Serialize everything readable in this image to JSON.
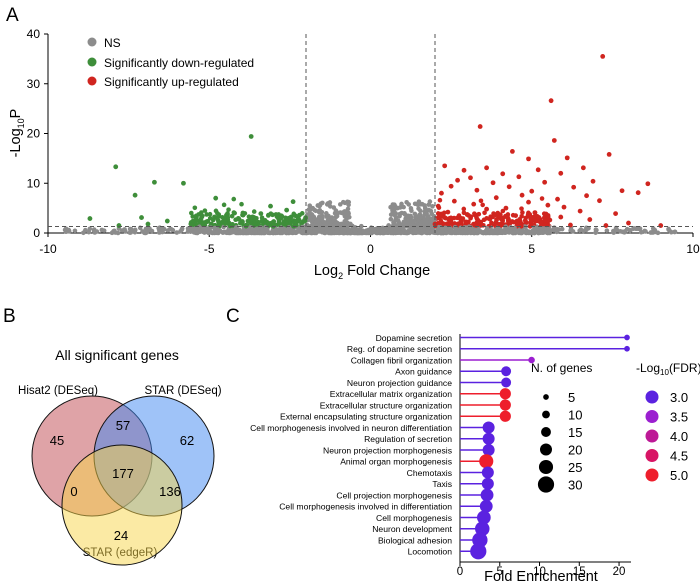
{
  "panels": {
    "a": "A",
    "b": "B",
    "c": "C"
  },
  "chart_data": [
    {
      "type": "scatter",
      "title": "",
      "xlabel": "Log2 Fold Change",
      "xlabel_base": "Log",
      "xlabel_sub": "2",
      "xlabel_rest": " Fold Change",
      "ylabel_base": "-Log",
      "ylabel_sub": "10",
      "ylabel_rest": "P",
      "xlim": [
        -10,
        10
      ],
      "ylim": [
        0,
        40
      ],
      "xticks": [
        -10,
        -5,
        0,
        5,
        10
      ],
      "yticks": [
        0,
        10,
        20,
        30,
        40
      ],
      "thresholds": {
        "x": [
          -2,
          2
        ],
        "y": 1.3
      },
      "legend": [
        {
          "label": "NS",
          "color": "#8c8c8c"
        },
        {
          "label": "Significantly down-regulated",
          "color": "#3e8e3a"
        },
        {
          "label": "Significantly up-regulated",
          "color": "#d0251f"
        }
      ],
      "colors": {
        "ns": "#8c8c8c",
        "down": "#3e8e3a",
        "up": "#d0251f"
      },
      "series": [
        {
          "name": "Significantly up-regulated",
          "points": [
            [
              7.2,
              35.5
            ],
            [
              5.6,
              26.6
            ],
            [
              3.4,
              21.4
            ],
            [
              5.7,
              18.6
            ],
            [
              4.4,
              16.4
            ],
            [
              6.1,
              15.1
            ],
            [
              7.4,
              15.8
            ],
            [
              4.9,
              14.9
            ],
            [
              2.3,
              13.5
            ],
            [
              3.6,
              13.1
            ],
            [
              5.2,
              12.7
            ],
            [
              6.6,
              13.1
            ],
            [
              2.9,
              12.6
            ],
            [
              4.1,
              11.9
            ],
            [
              5.9,
              12.0
            ],
            [
              3.1,
              11.1
            ],
            [
              4.6,
              11.3
            ],
            [
              6.9,
              10.4
            ],
            [
              2.7,
              10.6
            ],
            [
              3.8,
              10.1
            ],
            [
              5.4,
              10.2
            ],
            [
              8.6,
              9.9
            ],
            [
              2.5,
              9.4
            ],
            [
              4.3,
              9.3
            ],
            [
              6.3,
              9.2
            ],
            [
              7.8,
              8.5
            ],
            [
              8.3,
              8.1
            ],
            [
              3.3,
              8.6
            ],
            [
              5.0,
              8.4
            ],
            [
              2.2,
              8.0
            ],
            [
              4.7,
              7.6
            ],
            [
              6.7,
              7.5
            ],
            [
              3.9,
              7.1
            ],
            [
              5.8,
              6.8
            ],
            [
              2.6,
              6.4
            ],
            [
              4.9,
              6.2
            ],
            [
              7.1,
              6.5
            ],
            [
              3.2,
              5.8
            ],
            [
              5.5,
              5.6
            ],
            [
              6.0,
              5.2
            ],
            [
              2.1,
              5.4
            ],
            [
              4.2,
              5.0
            ],
            [
              3.6,
              4.8
            ],
            [
              6.5,
              4.4
            ],
            [
              2.4,
              4.2
            ],
            [
              5.1,
              4.1
            ],
            [
              7.6,
              3.9
            ],
            [
              3.0,
              3.7
            ],
            [
              4.5,
              3.5
            ],
            [
              5.9,
              3.2
            ],
            [
              2.3,
              3.1
            ],
            [
              3.7,
              2.8
            ],
            [
              6.8,
              2.7
            ],
            [
              4.8,
              2.5
            ],
            [
              2.8,
              2.3
            ],
            [
              5.3,
              2.1
            ],
            [
              8.0,
              2.0
            ],
            [
              3.4,
              1.9
            ],
            [
              2.0,
              1.8
            ],
            [
              4.0,
              1.7
            ],
            [
              6.2,
              1.6
            ],
            [
              7.3,
              1.5
            ],
            [
              9.0,
              1.5
            ],
            [
              2.5,
              2.0
            ]
          ]
        },
        {
          "name": "Significantly down-regulated",
          "points": [
            [
              -3.7,
              19.4
            ],
            [
              -7.9,
              13.3
            ],
            [
              -6.7,
              10.2
            ],
            [
              -5.8,
              10.0
            ],
            [
              -7.3,
              7.6
            ],
            [
              -4.8,
              7.0
            ],
            [
              -3.1,
              5.4
            ],
            [
              -2.4,
              6.3
            ],
            [
              -8.7,
              2.9
            ],
            [
              -7.1,
              3.1
            ],
            [
              -6.3,
              2.4
            ],
            [
              -2.6,
              4.6
            ],
            [
              -3.4,
              3.9
            ],
            [
              -2.9,
              3.3
            ],
            [
              -4.1,
              2.8
            ],
            [
              -2.2,
              3.6
            ],
            [
              -5.1,
              2.2
            ],
            [
              -3.8,
              2.4
            ],
            [
              -2.5,
              2.7
            ],
            [
              -4.5,
              1.9
            ],
            [
              -3.2,
              2.0
            ],
            [
              -6.9,
              1.8
            ],
            [
              -5.5,
              1.7
            ],
            [
              -2.7,
              1.9
            ],
            [
              -3.6,
              1.7
            ],
            [
              -2.1,
              2.2
            ],
            [
              -4.3,
              1.6
            ],
            [
              -7.8,
              1.5
            ],
            [
              -3.0,
              2.3
            ],
            [
              -2.3,
              1.6
            ]
          ]
        }
      ]
    },
    {
      "type": "venn",
      "title": "All significant genes",
      "sets": [
        {
          "name": "Hisat2 (DESeq)",
          "color": "#c0474f"
        },
        {
          "name": "STAR (DESeq)",
          "color": "#3f87f2"
        },
        {
          "name": "STAR (edgeR)",
          "color": "#f8d54a"
        }
      ],
      "regions": [
        {
          "sets": [
            "Hisat2 (DESeq)"
          ],
          "value": 45
        },
        {
          "sets": [
            "STAR (DESeq)"
          ],
          "value": 62
        },
        {
          "sets": [
            "STAR (edgeR)"
          ],
          "value": 24
        },
        {
          "sets": [
            "Hisat2 (DESeq)",
            "STAR (DESeq)"
          ],
          "value": 57
        },
        {
          "sets": [
            "Hisat2 (DESeq)",
            "STAR (edgeR)"
          ],
          "value": 0
        },
        {
          "sets": [
            "STAR (DESeq)",
            "STAR (edgeR)"
          ],
          "value": 136
        },
        {
          "sets": [
            "Hisat2 (DESeq)",
            "STAR (DESeq)",
            "STAR (edgeR)"
          ],
          "value": 177
        }
      ]
    },
    {
      "type": "lollipop",
      "title": "",
      "xlabel": "Fold Enrichement",
      "xlim": [
        0,
        21
      ],
      "xticks": [
        0,
        5,
        10,
        15,
        20
      ],
      "terms": [
        {
          "term": "Dopamine secretion",
          "fold": 21.0,
          "genes": 5,
          "fdr": 3.0
        },
        {
          "term": "Reg. of dopamine secretion",
          "fold": 21.0,
          "genes": 5,
          "fdr": 3.0
        },
        {
          "term": "Collagen fibril organization",
          "fold": 9.0,
          "genes": 7,
          "fdr": 3.3
        },
        {
          "term": "Axon guidance",
          "fold": 5.8,
          "genes": 15,
          "fdr": 3.0
        },
        {
          "term": "Neuron projection guidance",
          "fold": 5.8,
          "genes": 15,
          "fdr": 3.0
        },
        {
          "term": "Extracellular matrix organization",
          "fold": 5.7,
          "genes": 18,
          "fdr": 5.0
        },
        {
          "term": "Extracellular structure organization",
          "fold": 5.7,
          "genes": 18,
          "fdr": 5.0
        },
        {
          "term": "External encapsulating structure organization",
          "fold": 5.7,
          "genes": 18,
          "fdr": 5.0
        },
        {
          "term": "Cell morphogenesis involved in neuron differentiation",
          "fold": 3.6,
          "genes": 20,
          "fdr": 3.0
        },
        {
          "term": "Regulation of secretion",
          "fold": 3.6,
          "genes": 20,
          "fdr": 3.0
        },
        {
          "term": "Neuron projection morphogenesis",
          "fold": 3.6,
          "genes": 20,
          "fdr": 3.0
        },
        {
          "term": "Animal organ morphogenesis",
          "fold": 3.3,
          "genes": 25,
          "fdr": 5.0
        },
        {
          "term": "Chemotaxis",
          "fold": 3.5,
          "genes": 20,
          "fdr": 3.0
        },
        {
          "term": "Taxis",
          "fold": 3.5,
          "genes": 20,
          "fdr": 3.0
        },
        {
          "term": "Cell projection morphogenesis",
          "fold": 3.4,
          "genes": 22,
          "fdr": 3.0
        },
        {
          "term": "Cell morphogenesis involved in differentiation",
          "fold": 3.3,
          "genes": 22,
          "fdr": 3.0
        },
        {
          "term": "Cell morphogenesis",
          "fold": 3.0,
          "genes": 24,
          "fdr": 3.0
        },
        {
          "term": "Neuron development",
          "fold": 2.8,
          "genes": 26,
          "fdr": 3.0
        },
        {
          "term": "Biological adhesion",
          "fold": 2.5,
          "genes": 28,
          "fdr": 3.0
        },
        {
          "term": "Locomotion",
          "fold": 2.3,
          "genes": 30,
          "fdr": 3.0
        }
      ],
      "size_legend": {
        "title": "N. of genes",
        "values": [
          5,
          10,
          15,
          20,
          25,
          30
        ]
      },
      "color_legend": {
        "title_base": "-Log",
        "title_sub": "10",
        "title_rest": "(FDR)",
        "values": [
          "3.0",
          "3.5",
          "4.0",
          "4.5",
          "5.0"
        ],
        "colors": [
          "#5b22e0",
          "#9b1fd0",
          "#bd1996",
          "#d81565",
          "#ee1e2c"
        ]
      }
    }
  ]
}
